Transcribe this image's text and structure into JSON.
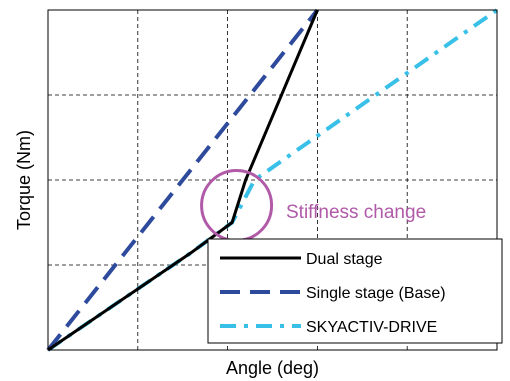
{
  "chart_data": {
    "type": "line",
    "title": "",
    "xlabel": "Angle (deg)",
    "ylabel": "Torque (Nm)",
    "xlim": [
      0,
      10
    ],
    "ylim": [
      0,
      8
    ],
    "grid": true,
    "tick_labels_shown": false,
    "legend_position": "bottom-right",
    "series": [
      {
        "name": "Dual stage",
        "color": "#000000",
        "style": "solid",
        "points": [
          [
            0,
            0
          ],
          [
            3.2,
            2.3
          ],
          [
            4.1,
            3.0
          ],
          [
            4.4,
            4.0
          ],
          [
            6.0,
            8.0
          ]
        ]
      },
      {
        "name": "Single stage (Base)",
        "color": "#2e4a9c",
        "style": "dashed",
        "points": [
          [
            0,
            0
          ],
          [
            6.0,
            8.0
          ]
        ]
      },
      {
        "name": "SKYACTIV-DRIVE",
        "color": "#38c0e8",
        "style": "dashdot",
        "points": [
          [
            0,
            0
          ],
          [
            3.2,
            2.3
          ],
          [
            4.1,
            3.0
          ],
          [
            4.6,
            4.0
          ],
          [
            10.0,
            8.0
          ]
        ]
      }
    ],
    "annotations": [
      {
        "text": "Stiffness change",
        "color": "#b05aa8",
        "marker": "circle",
        "at": [
          4.2,
          3.4
        ]
      }
    ]
  }
}
